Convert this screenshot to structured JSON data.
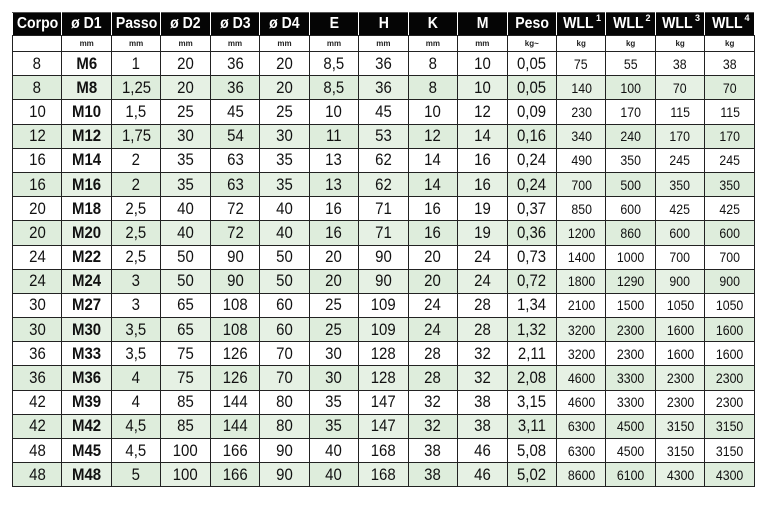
{
  "headers": [
    {
      "label": "Corpo",
      "sup": ""
    },
    {
      "label": "ø D1",
      "sup": ""
    },
    {
      "label": "Passo",
      "sup": ""
    },
    {
      "label": "ø D2",
      "sup": ""
    },
    {
      "label": "ø D3",
      "sup": ""
    },
    {
      "label": "ø D4",
      "sup": ""
    },
    {
      "label": "E",
      "sup": ""
    },
    {
      "label": "H",
      "sup": ""
    },
    {
      "label": "K",
      "sup": ""
    },
    {
      "label": "M",
      "sup": ""
    },
    {
      "label": "Peso",
      "sup": ""
    },
    {
      "label": "WLL",
      "sup": "1"
    },
    {
      "label": "WLL",
      "sup": "2"
    },
    {
      "label": "WLL",
      "sup": "3"
    },
    {
      "label": "WLL",
      "sup": "4"
    }
  ],
  "units": [
    "",
    "mm",
    "mm",
    "mm",
    "mm",
    "mm",
    "mm",
    "mm",
    "mm",
    "mm",
    "kg~",
    "kg",
    "kg",
    "kg",
    "kg"
  ],
  "colors": {
    "header_bg": "#050505",
    "alt_row": "#deeddc"
  },
  "rows": [
    [
      "8",
      "M6",
      "1",
      "20",
      "36",
      "20",
      "8,5",
      "36",
      "8",
      "10",
      "0,05",
      "75",
      "55",
      "38",
      "38"
    ],
    [
      "8",
      "M8",
      "1,25",
      "20",
      "36",
      "20",
      "8,5",
      "36",
      "8",
      "10",
      "0,05",
      "140",
      "100",
      "70",
      "70"
    ],
    [
      "10",
      "M10",
      "1,5",
      "25",
      "45",
      "25",
      "10",
      "45",
      "10",
      "12",
      "0,09",
      "230",
      "170",
      "115",
      "115"
    ],
    [
      "12",
      "M12",
      "1,75",
      "30",
      "54",
      "30",
      "11",
      "53",
      "12",
      "14",
      "0,16",
      "340",
      "240",
      "170",
      "170"
    ],
    [
      "16",
      "M14",
      "2",
      "35",
      "63",
      "35",
      "13",
      "62",
      "14",
      "16",
      "0,24",
      "490",
      "350",
      "245",
      "245"
    ],
    [
      "16",
      "M16",
      "2",
      "35",
      "63",
      "35",
      "13",
      "62",
      "14",
      "16",
      "0,24",
      "700",
      "500",
      "350",
      "350"
    ],
    [
      "20",
      "M18",
      "2,5",
      "40",
      "72",
      "40",
      "16",
      "71",
      "16",
      "19",
      "0,37",
      "850",
      "600",
      "425",
      "425"
    ],
    [
      "20",
      "M20",
      "2,5",
      "40",
      "72",
      "40",
      "16",
      "71",
      "16",
      "19",
      "0,36",
      "1200",
      "860",
      "600",
      "600"
    ],
    [
      "24",
      "M22",
      "2,5",
      "50",
      "90",
      "50",
      "20",
      "90",
      "20",
      "24",
      "0,73",
      "1400",
      "1000",
      "700",
      "700"
    ],
    [
      "24",
      "M24",
      "3",
      "50",
      "90",
      "50",
      "20",
      "90",
      "20",
      "24",
      "0,72",
      "1800",
      "1290",
      "900",
      "900"
    ],
    [
      "30",
      "M27",
      "3",
      "65",
      "108",
      "60",
      "25",
      "109",
      "24",
      "28",
      "1,34",
      "2100",
      "1500",
      "1050",
      "1050"
    ],
    [
      "30",
      "M30",
      "3,5",
      "65",
      "108",
      "60",
      "25",
      "109",
      "24",
      "28",
      "1,32",
      "3200",
      "2300",
      "1600",
      "1600"
    ],
    [
      "36",
      "M33",
      "3,5",
      "75",
      "126",
      "70",
      "30",
      "128",
      "28",
      "32",
      "2,11",
      "3200",
      "2300",
      "1600",
      "1600"
    ],
    [
      "36",
      "M36",
      "4",
      "75",
      "126",
      "70",
      "30",
      "128",
      "28",
      "32",
      "2,08",
      "4600",
      "3300",
      "2300",
      "2300"
    ],
    [
      "42",
      "M39",
      "4",
      "85",
      "144",
      "80",
      "35",
      "147",
      "32",
      "38",
      "3,15",
      "4600",
      "3300",
      "2300",
      "2300"
    ],
    [
      "42",
      "M42",
      "4,5",
      "85",
      "144",
      "80",
      "35",
      "147",
      "32",
      "38",
      "3,11",
      "6300",
      "4500",
      "3150",
      "3150"
    ],
    [
      "48",
      "M45",
      "4,5",
      "100",
      "166",
      "90",
      "40",
      "168",
      "38",
      "46",
      "5,08",
      "6300",
      "4500",
      "3150",
      "3150"
    ],
    [
      "48",
      "M48",
      "5",
      "100",
      "166",
      "90",
      "40",
      "168",
      "38",
      "46",
      "5,02",
      "8600",
      "6100",
      "4300",
      "4300"
    ]
  ]
}
